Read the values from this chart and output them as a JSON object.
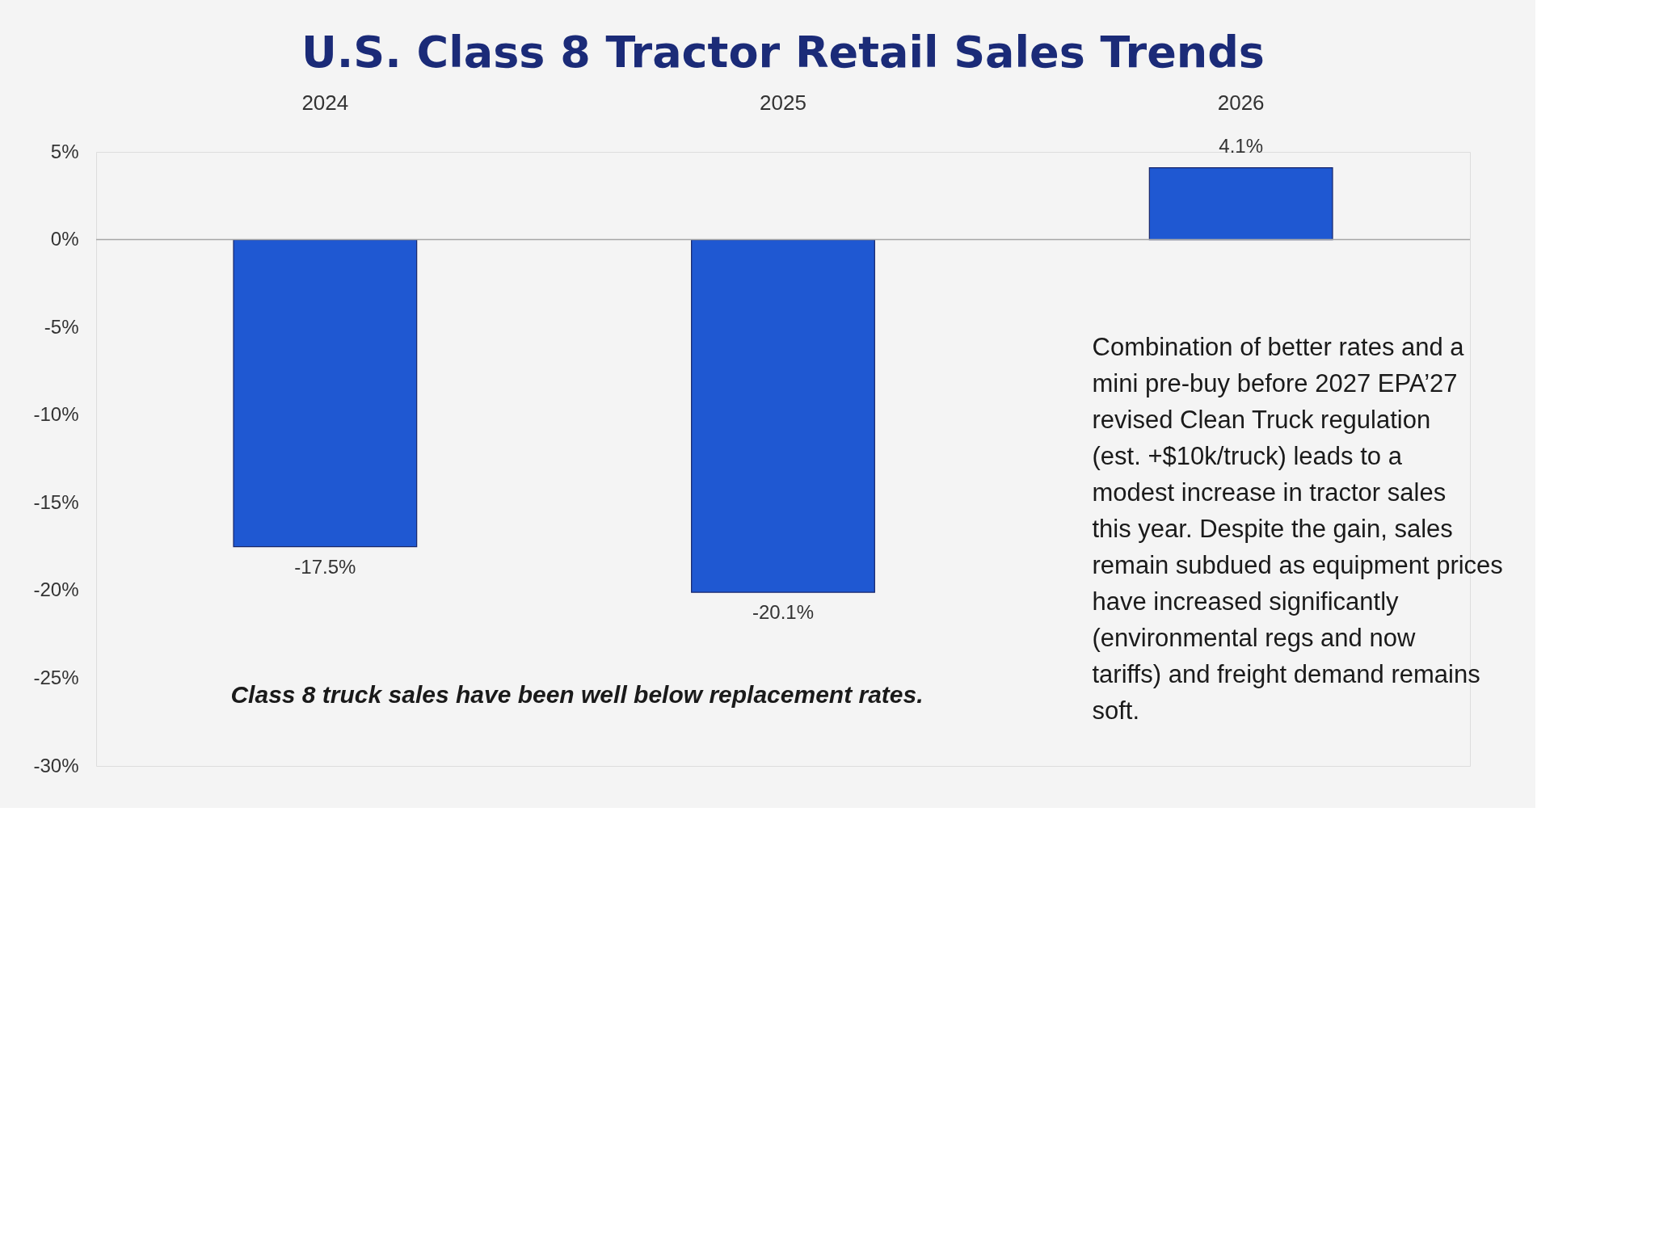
{
  "chart_data": {
    "type": "bar",
    "title": "U.S. Class 8 Tractor Retail Sales Trends",
    "categories": [
      "2024",
      "2025",
      "2026"
    ],
    "values": [
      -17.5,
      -20.1,
      4.1
    ],
    "value_labels": [
      "-17.5%",
      "-20.1%",
      "4.1%"
    ],
    "color": "#1f58d2",
    "ylim": [
      -30,
      5
    ],
    "yticks": [
      {
        "value": 5,
        "label": "5%"
      },
      {
        "value": 0,
        "label": "0%"
      },
      {
        "value": -5,
        "label": "-5%"
      },
      {
        "value": -10,
        "label": "-10%"
      },
      {
        "value": -15,
        "label": "-15%"
      },
      {
        "value": -20,
        "label": "-20%"
      },
      {
        "value": -25,
        "label": "-25%"
      },
      {
        "value": -30,
        "label": "-30%"
      }
    ],
    "grid": false,
    "legend": false,
    "ref_lines": [
      {
        "axis": "y",
        "value": 0,
        "color": "#a6a6a6"
      }
    ],
    "annotations": [
      "Class 8 truck sales have been well below replacement rates.",
      "Combination of better rates and a mini pre-buy before 2027 EPA’27 revised Clean Truck regulation (est. +$10k/truck) leads to a modest increase in tractor sales this year. Despite the gain, sales remain subdued as equipment prices have increased significantly (environmental regs and now tariffs) and freight demand remains soft."
    ]
  }
}
